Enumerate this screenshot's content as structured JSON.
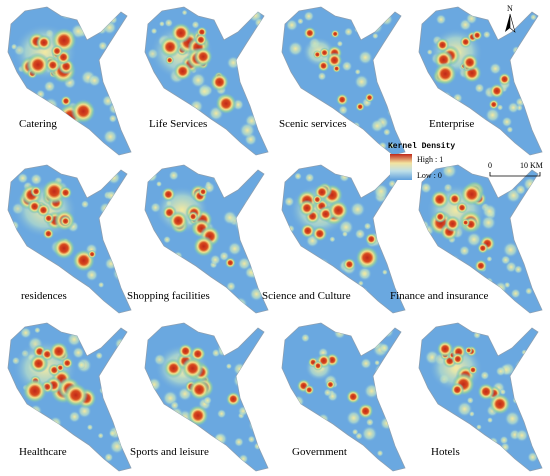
{
  "panels": [
    {
      "label": "Catering"
    },
    {
      "label": "Life Services"
    },
    {
      "label": "Scenic services"
    },
    {
      "label": "Enterprise"
    },
    {
      "label": "residences"
    },
    {
      "label": "Shopping facilities"
    },
    {
      "label": "Science and Culture"
    },
    {
      "label": "Finance and insurance"
    },
    {
      "label": "Healthcare"
    },
    {
      "label": "Sports and leisure"
    },
    {
      "label": "Government"
    },
    {
      "label": "Hotels"
    }
  ],
  "legend": {
    "title": "Kernel Density",
    "high": "High : 1",
    "low": "Low : 0"
  },
  "scale_bar": {
    "start": "0",
    "end": "10 KM"
  },
  "north": "N"
}
